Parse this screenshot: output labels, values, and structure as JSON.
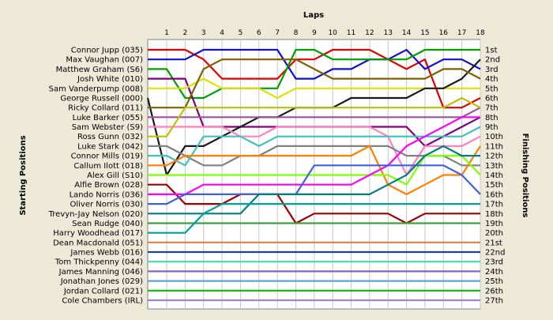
{
  "chart_data": {
    "type": "line",
    "title": "",
    "xlabel": "Laps",
    "ylabel_left": "Starting Positions",
    "ylabel_right": "Finishing Positions",
    "laps": [
      1,
      2,
      3,
      4,
      5,
      6,
      7,
      8,
      9,
      10,
      11,
      12,
      13,
      14,
      15,
      16,
      17,
      18
    ],
    "starting_order": [
      "Connor Jupp (035)",
      "Max Vaughan (007)",
      "Matthew Graham (S6)",
      "Josh White (010)",
      "Sam Vanderpump (008)",
      "George Russell (000)",
      "Ricky Collard (011)",
      "Luke Barker (055)",
      "Sam Webster (S9)",
      "Ross Gunn (032)",
      "Luke Stark (042)",
      "Connor Mills (019)",
      "Callum Ilott (018)",
      "Alex Gill (S10)",
      "Alfie Brown (028)",
      "Lando Norris (036)",
      "Oliver Norris (030)",
      "Trevyn-Jay Nelson (020)",
      "Sean Rudge (040)",
      "Harry Woodhead (017)",
      "Dean Macdonald (051)",
      "James Webb (016)",
      "Tom Thickpenny (044)",
      "James Manning (046)",
      "Jonathan Jones (029)",
      "Jordan Collard (021)",
      "Cole Chambers (IRL)"
    ],
    "finishing_labels": [
      "1st",
      "2nd",
      "3rd",
      "4th",
      "5th",
      "6th",
      "7th",
      "8th",
      "9th",
      "10th",
      "11th",
      "12th",
      "13th",
      "14th",
      "15th",
      "16th",
      "17th",
      "18th",
      "19th",
      "20th",
      "21st",
      "22nd",
      "23rd",
      "24th",
      "25th",
      "26th",
      "27th"
    ],
    "grid": true,
    "series": [
      {
        "color": "#E00000",
        "values": [
          1,
          1,
          2,
          4,
          4,
          4,
          4,
          2,
          2,
          1,
          1,
          1,
          2,
          3,
          2,
          7,
          7,
          6
        ]
      },
      {
        "color": "#1010D0",
        "values": [
          2,
          2,
          1,
          1,
          1,
          1,
          1,
          4,
          4,
          3,
          3,
          2,
          2,
          1,
          3,
          2,
          2,
          3
        ]
      },
      {
        "color": "#00A000",
        "values": [
          3,
          6,
          6,
          5,
          5,
          5,
          5,
          1,
          1,
          2,
          2,
          2,
          2,
          2,
          1,
          1,
          1,
          1
        ]
      },
      {
        "color": "#800080",
        "values": [
          4,
          4,
          9,
          9,
          9,
          9,
          9,
          9,
          9,
          9,
          9,
          9,
          9,
          9,
          11,
          10,
          9,
          8
        ]
      },
      {
        "color": "#E0E000",
        "values": [
          5,
          5,
          4,
          5,
          5,
          5,
          6,
          5,
          5,
          5,
          5,
          5,
          5,
          5,
          5,
          5,
          5,
          5
        ]
      },
      {
        "color": "#1A1A1A",
        "values": [
          14,
          11,
          11,
          10,
          9,
          8,
          8,
          7,
          7,
          7,
          6,
          6,
          6,
          6,
          5,
          5,
          4,
          2
        ]
      },
      {
        "color": "#806000",
        "values": [
          7,
          7,
          3,
          2,
          2,
          2,
          2,
          2,
          3,
          4,
          4,
          4,
          4,
          4,
          4,
          3,
          3,
          4
        ]
      },
      {
        "color": "#A050A0",
        "values": [
          8,
          8,
          8,
          8,
          8,
          8,
          8,
          8,
          8,
          8,
          8,
          8,
          8,
          8,
          8,
          8,
          8,
          7
        ]
      },
      {
        "color": "#FF80C0",
        "values": [
          9,
          9,
          9,
          9,
          10,
          10,
          9,
          9,
          9,
          9,
          9,
          9,
          10,
          14,
          11,
          11,
          11,
          10
        ]
      },
      {
        "color": "#C0C000",
        "values": [
          10,
          7,
          7,
          7,
          7,
          7,
          7,
          7,
          7,
          7,
          7,
          7,
          7,
          7,
          7,
          7,
          6,
          7
        ]
      },
      {
        "color": "#808080",
        "values": [
          11,
          12,
          13,
          13,
          12,
          12,
          11,
          11,
          11,
          11,
          11,
          11,
          11,
          12,
          12,
          12,
          13,
          13
        ]
      },
      {
        "color": "#40C0C0",
        "values": [
          12,
          13,
          10,
          10,
          10,
          11,
          10,
          10,
          10,
          10,
          10,
          10,
          10,
          10,
          10,
          10,
          10,
          9
        ]
      },
      {
        "color": "#FF8000",
        "values": [
          13,
          12,
          12,
          12,
          12,
          12,
          12,
          12,
          12,
          12,
          12,
          11,
          15,
          16,
          15,
          14,
          14,
          11
        ]
      },
      {
        "color": "#80FF00",
        "values": [
          14,
          14,
          14,
          14,
          14,
          14,
          14,
          14,
          14,
          14,
          14,
          14,
          14,
          15,
          12,
          12,
          12,
          14
        ]
      },
      {
        "color": "#A00000",
        "values": [
          15,
          17,
          17,
          17,
          16,
          16,
          16,
          19,
          18,
          18,
          18,
          18,
          18,
          19,
          18,
          18,
          18,
          18
        ]
      },
      {
        "color": "#FF00FF",
        "values": [
          16,
          16,
          15,
          15,
          15,
          15,
          15,
          15,
          15,
          15,
          15,
          14,
          13,
          11,
          10,
          9,
          8,
          8
        ]
      },
      {
        "color": "#4060E0",
        "values": [
          17,
          16,
          16,
          16,
          16,
          16,
          16,
          16,
          13,
          13,
          13,
          13,
          13,
          13,
          13,
          13,
          14,
          16
        ]
      },
      {
        "color": "#008080",
        "values": [
          18,
          18,
          18,
          18,
          18,
          16,
          16,
          16,
          16,
          16,
          16,
          16,
          15,
          14,
          12,
          11,
          12,
          12
        ]
      },
      {
        "color": "#40A040",
        "values": [
          19,
          19,
          19,
          19,
          19,
          19,
          19,
          19,
          19,
          19,
          19,
          19,
          19,
          19,
          19,
          19,
          19,
          19
        ]
      },
      {
        "color": "#00A0A0",
        "values": [
          20,
          20,
          18,
          17,
          17,
          17,
          17,
          17,
          17,
          17,
          17,
          17,
          17,
          17,
          17,
          17,
          17,
          17
        ]
      },
      {
        "color": "#E08040",
        "values": [
          21,
          21,
          21,
          21,
          21,
          21,
          21,
          21,
          21,
          21,
          21,
          21,
          21,
          21,
          21,
          21,
          21,
          21
        ]
      },
      {
        "color": "#2040A0",
        "values": [
          22,
          22,
          22,
          22,
          22,
          22,
          22,
          22,
          22,
          22,
          22,
          22,
          22,
          22,
          22,
          22,
          22,
          22
        ]
      },
      {
        "color": "#40E0A0",
        "values": [
          23,
          23,
          23,
          23,
          23,
          23,
          23,
          23,
          23,
          23,
          23,
          23,
          23,
          23,
          23,
          23,
          23,
          23
        ]
      },
      {
        "color": "#9060C0",
        "values": [
          24,
          24,
          24,
          24,
          24,
          24,
          24,
          24,
          24,
          24,
          24,
          24,
          24,
          24,
          24,
          24,
          24,
          24
        ]
      },
      {
        "color": "#60A0E0",
        "values": [
          25,
          25,
          25,
          25,
          25,
          25,
          25,
          25,
          25,
          25,
          25,
          25,
          25,
          25,
          25,
          25,
          25,
          25
        ]
      },
      {
        "color": "#00C000",
        "values": [
          26,
          26,
          26,
          26,
          26,
          26,
          26,
          26,
          26,
          26,
          26,
          26,
          26,
          26,
          26,
          26,
          26,
          26
        ]
      },
      {
        "color": "#A080E0",
        "values": [
          27,
          27,
          27,
          27,
          27,
          27,
          27,
          27,
          27,
          27,
          27,
          27,
          27,
          27,
          27,
          27,
          27,
          27
        ]
      }
    ]
  }
}
